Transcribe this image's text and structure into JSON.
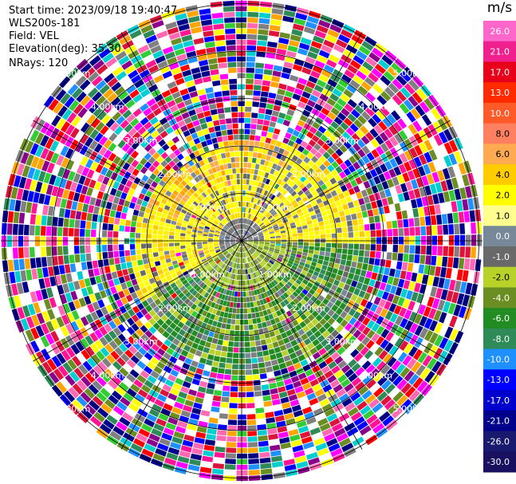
{
  "info": {
    "start_time": "Start time: 2023/09/18 19:40:47",
    "instrument": "WLS200s-181",
    "field": "Field: VEL",
    "elevation": "Elevation(deg): 35.30",
    "nrays": "NRays: 120"
  },
  "chart_data": {
    "type": "heatmap",
    "projection": "polar-ppi",
    "field": "VEL",
    "n_rays": 120,
    "range_rings_km": [
      1.0,
      2.0,
      3.0,
      4.0,
      5.0
    ],
    "range_ring_label": "km",
    "spokes_deg": [
      0,
      30,
      60,
      90,
      120,
      150,
      180,
      210,
      240,
      270,
      300,
      330
    ],
    "colorbar": {
      "unit": "m/s",
      "ticks": [
        "26.0",
        "21.0",
        "17.0",
        "13.0",
        "10.0",
        "8.0",
        "6.0",
        "4.0",
        "2.0",
        "1.0",
        "0.0",
        "-1.0",
        "-2.0",
        "-4.0",
        "-6.0",
        "-8.0",
        "-10.0",
        "-13.0",
        "-17.0",
        "-21.0",
        "-26.0",
        "-30.0"
      ],
      "colors": [
        "#ff66cc",
        "#f0208f",
        "#e8001a",
        "#ff2a00",
        "#ff5a28",
        "#ff8060",
        "#ffaa50",
        "#ffcc00",
        "#ffff00",
        "#ffff90",
        "#778899",
        "#696969",
        "#b8d22a",
        "#6b8e23",
        "#228b22",
        "#2e8b57",
        "#1e90ff",
        "#0000ff",
        "#0000cd",
        "#00008b",
        "#191970",
        "#1a1060"
      ]
    }
  }
}
